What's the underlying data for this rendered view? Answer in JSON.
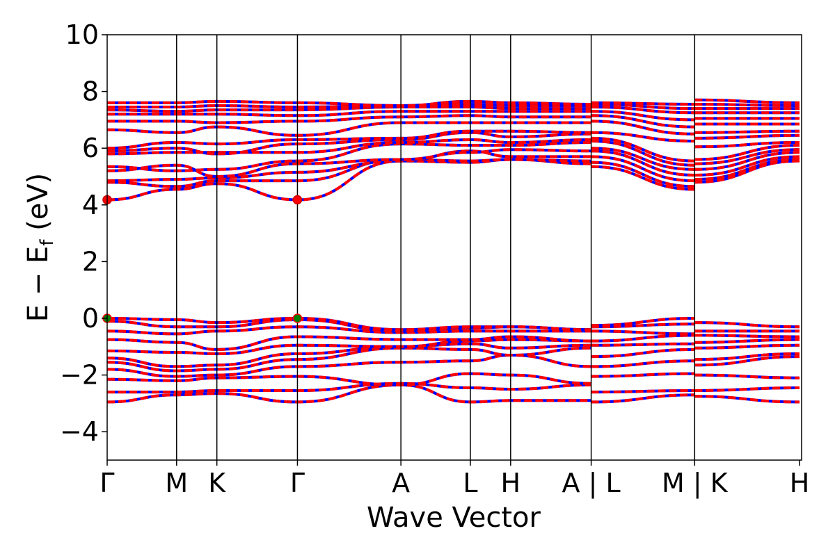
{
  "chart_data": {
    "type": "line",
    "xlabel": "Wave Vector",
    "ylabel_main": "E − E",
    "ylabel_sub": "f",
    "ylabel_unit": " (eV)",
    "ylim": [
      -5,
      10
    ],
    "yticks": [
      {
        "value": -4,
        "label": "−4"
      },
      {
        "value": -2,
        "label": "−2"
      },
      {
        "value": 0,
        "label": "0"
      },
      {
        "value": 2,
        "label": "2"
      },
      {
        "value": 4,
        "label": "4"
      },
      {
        "value": 6,
        "label": "6"
      },
      {
        "value": 8,
        "label": "8"
      },
      {
        "value": 10,
        "label": "10"
      }
    ],
    "xlim": [
      0,
      10
    ],
    "kpoints": [
      {
        "pos": 0.0,
        "label": "Γ"
      },
      {
        "pos": 1.0,
        "label": "M"
      },
      {
        "pos": 1.58,
        "label": "K"
      },
      {
        "pos": 2.74,
        "label": "Γ"
      },
      {
        "pos": 4.23,
        "label": "A"
      },
      {
        "pos": 5.23,
        "label": "L"
      },
      {
        "pos": 5.81,
        "label": "H"
      },
      {
        "pos": 6.97,
        "label": "A | L"
      },
      {
        "pos": 8.46,
        "label": "M | K"
      },
      {
        "pos": 9.97,
        "label": "H"
      }
    ],
    "colors": {
      "spin_up": "#ff0000",
      "spin_down": "#0000ff",
      "vbm_marker": "#008000",
      "cbm_marker": "#ff0000",
      "frame": "#000000"
    },
    "markers": [
      {
        "role": "cbm",
        "x": 0.0,
        "y": 4.18
      },
      {
        "role": "cbm",
        "x": 2.74,
        "y": 4.18
      },
      {
        "role": "vbm",
        "x": 0.0,
        "y": 0.0
      },
      {
        "role": "vbm",
        "x": 2.74,
        "y": 0.0
      }
    ],
    "segments": [
      {
        "x_start": 0.0,
        "x_end": 6.97,
        "nodes": [
          0.0,
          1.0,
          1.58,
          2.74,
          4.23,
          5.23,
          5.81,
          6.97
        ],
        "bands": [
          [
            -2.95,
            -2.7,
            -2.65,
            -2.95,
            -2.35,
            -2.95,
            -2.9,
            -2.9
          ],
          [
            -2.6,
            -2.6,
            -2.55,
            -2.55,
            -2.3,
            -2.45,
            -2.5,
            -2.35
          ],
          [
            -2.15,
            -2.2,
            -2.1,
            -2.05,
            -2.35,
            -1.95,
            -2.0,
            -2.3
          ],
          [
            -1.8,
            -2.05,
            -2.0,
            -1.7,
            -1.55,
            -1.5,
            -1.3,
            -1.7
          ],
          [
            -1.55,
            -1.85,
            -1.8,
            -1.45,
            -1.05,
            -1.1,
            -1.3,
            -1.05
          ],
          [
            -1.4,
            -1.7,
            -1.65,
            -1.25,
            -1.0,
            -0.9,
            -1.05,
            -0.95
          ],
          [
            -1.15,
            -1.2,
            -1.25,
            -0.95,
            -1.0,
            -0.8,
            -0.75,
            -0.8
          ],
          [
            -0.75,
            -0.85,
            -1.1,
            -0.65,
            -0.75,
            -0.75,
            -0.65,
            -0.8
          ],
          [
            -0.45,
            -0.55,
            -0.45,
            -0.3,
            -0.5,
            -0.45,
            -0.45,
            -0.45
          ],
          [
            -0.1,
            -0.3,
            -0.3,
            -0.05,
            -0.45,
            -0.35,
            -0.3,
            -0.4
          ],
          [
            0.0,
            -0.05,
            -0.15,
            0.0,
            -0.4,
            -0.3,
            -0.3,
            -0.4
          ],
          [
            4.18,
            4.55,
            4.75,
            4.18,
            5.55,
            5.5,
            5.6,
            5.45
          ],
          [
            4.8,
            4.65,
            4.85,
            4.85,
            5.6,
            5.55,
            5.6,
            5.55
          ],
          [
            4.85,
            4.9,
            4.95,
            5.15,
            5.55,
            5.9,
            5.7,
            5.7
          ],
          [
            5.2,
            5.4,
            5.0,
            5.45,
            5.6,
            5.85,
            5.95,
            5.9
          ],
          [
            5.35,
            5.2,
            5.25,
            5.55,
            6.15,
            6.1,
            6.1,
            6.2
          ],
          [
            5.8,
            5.85,
            5.85,
            5.85,
            6.2,
            6.3,
            6.2,
            6.3
          ],
          [
            5.9,
            6.0,
            5.8,
            6.15,
            6.3,
            6.55,
            6.4,
            6.5
          ],
          [
            6.0,
            6.2,
            6.15,
            6.3,
            6.35,
            6.6,
            6.6,
            6.55
          ],
          [
            6.65,
            6.55,
            6.75,
            6.45,
            6.9,
            6.9,
            6.9,
            6.9
          ],
          [
            6.95,
            6.95,
            6.9,
            6.95,
            7.1,
            7.15,
            7.1,
            7.1
          ],
          [
            7.2,
            7.2,
            7.2,
            7.15,
            7.3,
            7.3,
            7.3,
            7.3
          ],
          [
            7.35,
            7.3,
            7.35,
            7.35,
            7.45,
            7.45,
            7.4,
            7.4
          ],
          [
            7.45,
            7.45,
            7.5,
            7.45,
            7.5,
            7.55,
            7.5,
            7.5
          ],
          [
            7.6,
            7.6,
            7.65,
            7.6,
            7.5,
            7.65,
            7.6,
            7.55
          ]
        ]
      },
      {
        "x_start": 6.97,
        "x_end": 8.46,
        "nodes": [
          6.97,
          8.46
        ],
        "bands": [
          [
            -2.95,
            -2.7
          ],
          [
            -2.6,
            -2.55
          ],
          [
            -2.05,
            -1.95
          ],
          [
            -1.7,
            -1.5
          ],
          [
            -1.35,
            -1.1
          ],
          [
            -0.95,
            -0.9
          ],
          [
            -0.8,
            -0.6
          ],
          [
            -0.45,
            -0.55
          ],
          [
            -0.3,
            -0.2
          ],
          [
            -0.25,
            0.0
          ],
          [
            5.35,
            4.55
          ],
          [
            5.5,
            4.65
          ],
          [
            5.7,
            4.85
          ],
          [
            5.9,
            5.05
          ],
          [
            6.0,
            5.25
          ],
          [
            6.25,
            5.4
          ],
          [
            6.35,
            5.55
          ],
          [
            6.55,
            6.25
          ],
          [
            6.95,
            6.5
          ],
          [
            7.15,
            6.75
          ],
          [
            7.3,
            7.0
          ],
          [
            7.45,
            7.25
          ],
          [
            7.55,
            7.4
          ],
          [
            7.6,
            7.55
          ]
        ]
      },
      {
        "x_start": 8.46,
        "x_end": 9.97,
        "nodes": [
          8.46,
          9.97
        ],
        "bands": [
          [
            -2.75,
            -2.95
          ],
          [
            -2.55,
            -2.45
          ],
          [
            -2.0,
            -2.1
          ],
          [
            -1.65,
            -1.35
          ],
          [
            -1.45,
            -1.25
          ],
          [
            -1.05,
            -0.95
          ],
          [
            -0.85,
            -0.75
          ],
          [
            -0.6,
            -0.65
          ],
          [
            -0.45,
            -0.45
          ],
          [
            -0.15,
            -0.3
          ],
          [
            4.8,
            5.55
          ],
          [
            4.9,
            5.6
          ],
          [
            5.05,
            5.7
          ],
          [
            5.25,
            5.85
          ],
          [
            5.45,
            5.95
          ],
          [
            5.6,
            6.1
          ],
          [
            6.05,
            6.2
          ],
          [
            6.35,
            6.45
          ],
          [
            6.55,
            6.6
          ],
          [
            6.85,
            6.85
          ],
          [
            7.05,
            7.05
          ],
          [
            7.25,
            7.25
          ],
          [
            7.4,
            7.4
          ],
          [
            7.55,
            7.5
          ],
          [
            7.7,
            7.6
          ]
        ]
      }
    ]
  }
}
